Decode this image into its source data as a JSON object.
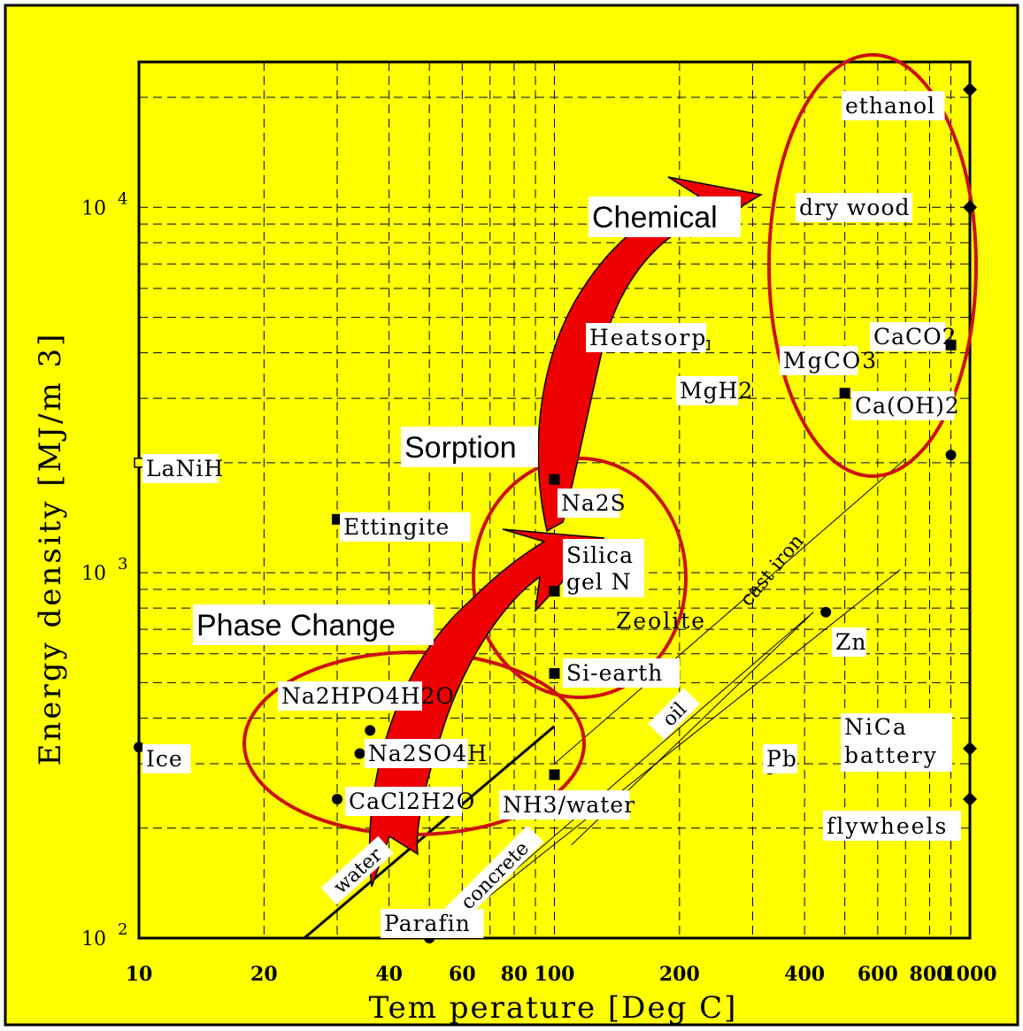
{
  "colors": {
    "background": "#ffff00",
    "frame": "#000000",
    "grid": "#000000",
    "arrow": "#e00000",
    "ellipse": "#cc1111",
    "label_box": "#ffffff"
  },
  "chart_data": {
    "type": "scatter",
    "xscale": "log",
    "yscale": "log",
    "xlim": [
      10,
      1000
    ],
    "ylim": [
      100,
      25000
    ],
    "grid": true,
    "xlabel": "Tem perature [Deg C]",
    "ylabel": "Energy density [MJ/m 3]",
    "xticks": [
      {
        "v": 10,
        "label": "10"
      },
      {
        "v": 20,
        "label": "20"
      },
      {
        "v": 40,
        "label": "40"
      },
      {
        "v": 60,
        "label": "60"
      },
      {
        "v": 80,
        "label": "80"
      },
      {
        "v": 100,
        "label": "100"
      },
      {
        "v": 200,
        "label": "200"
      },
      {
        "v": 400,
        "label": "400"
      },
      {
        "v": 600,
        "label": "600"
      },
      {
        "v": 800,
        "label": "800"
      },
      {
        "v": 1000,
        "label": "1000"
      }
    ],
    "yticks": [
      {
        "v": 100,
        "label": "10",
        "exp": "2"
      },
      {
        "v": 1000,
        "label": "10",
        "exp": "3"
      },
      {
        "v": 10000,
        "label": "10",
        "exp": "4"
      }
    ],
    "points": [
      {
        "name": "LaNiH",
        "x": 10,
        "y": 2000,
        "marker": "square-open"
      },
      {
        "name": "Ettingite",
        "x": 30,
        "y": 1400,
        "marker": "square"
      },
      {
        "name": "Ice",
        "x": 10,
        "y": 333,
        "marker": "circle"
      },
      {
        "name": "Na2HPO4H2O",
        "x": 36,
        "y": 370,
        "marker": "circle"
      },
      {
        "name": "Na2SO4H",
        "x": 34,
        "y": 320,
        "marker": "circle"
      },
      {
        "name": "CaCl2H2O",
        "x": 30,
        "y": 240,
        "marker": "circle"
      },
      {
        "name": "Parafin",
        "x": 50,
        "y": 100,
        "marker": "circle"
      },
      {
        "name": "Na2S",
        "x": 100,
        "y": 1800,
        "marker": "square"
      },
      {
        "name": "Silica gel N",
        "x": 100,
        "y": 890,
        "marker": "square"
      },
      {
        "name": "Si-earth",
        "x": 100,
        "y": 530,
        "marker": "square"
      },
      {
        "name": "NH3/water",
        "x": 100,
        "y": 280,
        "marker": "square"
      },
      {
        "name": "MgH2",
        "x": 230,
        "y": 4200,
        "marker": "square-open"
      },
      {
        "name": "Ca(OH)2",
        "x": 500,
        "y": 3100,
        "marker": "square"
      },
      {
        "name": "CaCO2",
        "x": 900,
        "y": 4200,
        "marker": "square"
      },
      {
        "name": "ethanol",
        "x": 1000,
        "y": 21000,
        "marker": "diamond"
      },
      {
        "name": "dry wood",
        "x": 1000,
        "y": 10000,
        "marker": "diamond"
      },
      {
        "name": "Zn",
        "x": 450,
        "y": 780,
        "marker": "circle"
      },
      {
        "name": "Pb",
        "x": 330,
        "y": 290,
        "marker": "circle"
      },
      {
        "name": "NiCa battery",
        "x": 1000,
        "y": 330,
        "marker": "diamond"
      },
      {
        "name": "flywheels",
        "x": 1000,
        "y": 240,
        "marker": "diamond"
      },
      {
        "name": "unlabeled",
        "x": 900,
        "y": 2100,
        "marker": "circle"
      }
    ],
    "lines": [
      {
        "name": "water",
        "from": [
          25,
          100
        ],
        "to": [
          100,
          380
        ],
        "width": 3
      },
      {
        "name": "cast iron",
        "from": [
          100,
          300
        ],
        "to": [
          700,
          2050
        ],
        "width": 1
      },
      {
        "name": "oil",
        "from": [
          110,
          180
        ],
        "to": [
          420,
          780
        ],
        "width": 1
      },
      {
        "name": "concrete",
        "from": [
          52,
          100
        ],
        "to": [
          420,
          780
        ],
        "width": 1
      },
      {
        "name": "",
        "from": [
          52,
          100
        ],
        "to": [
          680,
          1020
        ],
        "width": 1
      }
    ],
    "line_labels": [
      "water",
      "concrete",
      "oil",
      "cast iron"
    ],
    "categories": [
      "Phase Change",
      "Sorption",
      "Chemical"
    ],
    "other_labels": [
      "Heatsorp",
      "MgCO3",
      "Zeolite"
    ]
  }
}
